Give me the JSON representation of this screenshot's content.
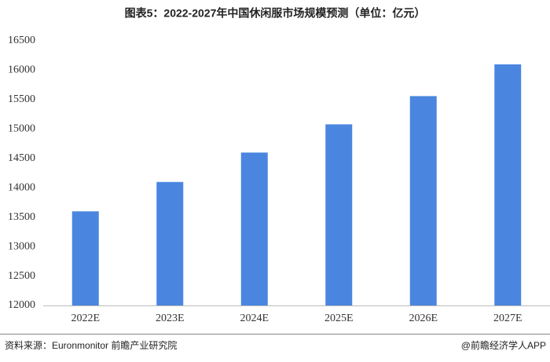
{
  "chart_data": {
    "type": "bar",
    "title": "图表5：2022-2027年中国休闲服市场规模预测（单位：亿元）",
    "categories": [
      "2022E",
      "2023E",
      "2024E",
      "2025E",
      "2026E",
      "2027E"
    ],
    "values": [
      13600,
      14100,
      14600,
      15080,
      15560,
      16100
    ],
    "color": "#4a86e0",
    "ylim": [
      12000,
      16500
    ],
    "yticks": [
      12000,
      12500,
      13000,
      13500,
      14000,
      14500,
      15000,
      15500,
      16000,
      16500
    ],
    "grid": false,
    "source": "资料来源：Euronmonitor 前瞻产业研究院",
    "credit": "@前瞻经济学人APP"
  }
}
